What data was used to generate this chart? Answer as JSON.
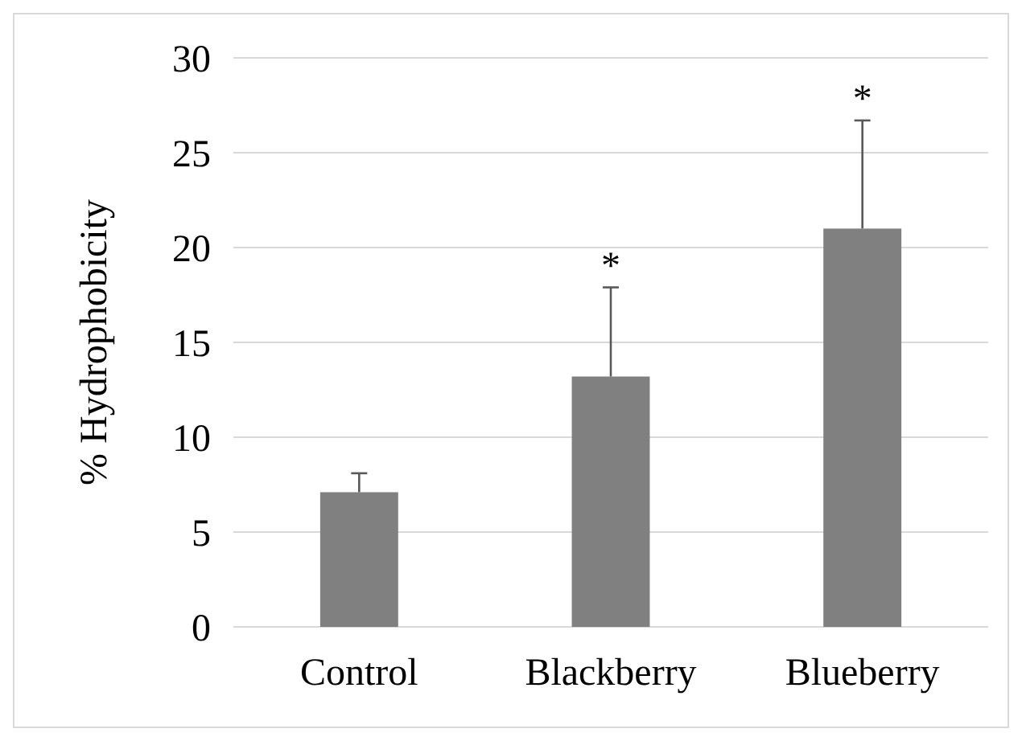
{
  "chart_data": {
    "type": "bar",
    "ylabel": "% Hydrophobicity",
    "categories": [
      "Control",
      "Blackberry",
      "Blueberry"
    ],
    "values": [
      7.1,
      13.2,
      21.0
    ],
    "color": "#808080",
    "errors": [
      [
        7.1,
        8.1
      ],
      [
        13.2,
        17.9
      ],
      [
        21.0,
        26.7
      ]
    ],
    "ylim": [
      0,
      30
    ],
    "yticks": [
      0,
      5,
      10,
      15,
      20,
      25,
      30
    ],
    "grid": "y",
    "annotations": [
      {
        "text": "*",
        "x": "Blackberry",
        "y": 17.9
      },
      {
        "text": "*",
        "x": "Blueberry",
        "y": 26.7
      }
    ]
  }
}
